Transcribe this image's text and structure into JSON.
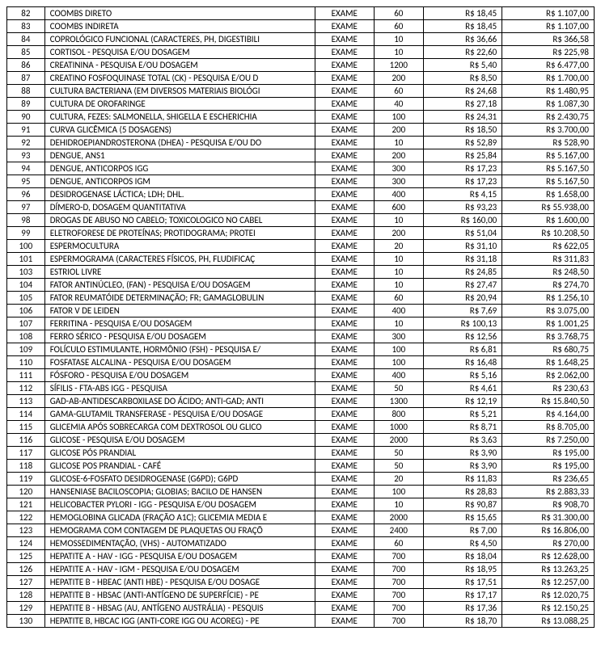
{
  "table": {
    "columns": [
      {
        "key": "id",
        "class": "col-id"
      },
      {
        "key": "desc",
        "class": "col-desc"
      },
      {
        "key": "type",
        "class": "col-type"
      },
      {
        "key": "qty",
        "class": "col-qty"
      },
      {
        "key": "unit",
        "class": "col-unit"
      },
      {
        "key": "total",
        "class": "col-total"
      }
    ],
    "rows": [
      {
        "id": "82",
        "desc": "COOMBS DIRETO",
        "type": "EXAME",
        "qty": "60",
        "unit": "R$ 18,45",
        "total": "R$ 1.107,00"
      },
      {
        "id": "83",
        "desc": "COOMBS INDIRETA",
        "type": "EXAME",
        "qty": "60",
        "unit": "R$ 18,45",
        "total": "R$ 1.107,00"
      },
      {
        "id": "84",
        "desc": "COPROLÓGICO FUNCIONAL (CARACTERES, PH, DIGESTIBILI",
        "type": "EXAME",
        "qty": "10",
        "unit": "R$ 36,66",
        "total": "R$ 366,58"
      },
      {
        "id": "85",
        "desc": "CORTISOL - PESQUISA E/OU DOSAGEM",
        "type": "EXAME",
        "qty": "10",
        "unit": "R$ 22,60",
        "total": "R$ 225,98"
      },
      {
        "id": "86",
        "desc": "CREATININA - PESQUISA E/OU DOSAGEM",
        "type": "EXAME",
        "qty": "1200",
        "unit": "R$ 5,40",
        "total": "R$ 6.477,00"
      },
      {
        "id": "87",
        "desc": "CREATINO FOSFOQUINASE TOTAL (CK) - PESQUISA E/OU D",
        "type": "EXAME",
        "qty": "200",
        "unit": "R$ 8,50",
        "total": "R$ 1.700,00"
      },
      {
        "id": "88",
        "desc": "CULTURA BACTERIANA (EM DIVERSOS MATERIAIS BIOLÓGI",
        "type": "EXAME",
        "qty": "60",
        "unit": "R$ 24,68",
        "total": "R$ 1.480,95"
      },
      {
        "id": "89",
        "desc": "CULTURA DE OROFARINGE",
        "type": "EXAME",
        "qty": "40",
        "unit": "R$ 27,18",
        "total": "R$ 1.087,30"
      },
      {
        "id": "90",
        "desc": "CULTURA, FEZES: SALMONELLA, SHIGELLA E ESCHERICHIA",
        "type": "EXAME",
        "qty": "100",
        "unit": "R$ 24,31",
        "total": "R$ 2.430,75"
      },
      {
        "id": "91",
        "desc": "CURVA GLICÊMICA (5 DOSAGENS)",
        "type": "EXAME",
        "qty": "200",
        "unit": "R$ 18,50",
        "total": "R$ 3.700,00"
      },
      {
        "id": "92",
        "desc": "DEHIDROEPIANDROSTERONA (DHEA) - PESQUISA E/OU DO",
        "type": "EXAME",
        "qty": "10",
        "unit": "R$ 52,89",
        "total": "R$ 528,90"
      },
      {
        "id": "93",
        "desc": "DENGUE, ANS1",
        "type": "EXAME",
        "qty": "200",
        "unit": "R$ 25,84",
        "total": "R$ 5.167,00"
      },
      {
        "id": "94",
        "desc": "DENGUE, ANTICORPOS IGG",
        "type": "EXAME",
        "qty": "300",
        "unit": "R$ 17,23",
        "total": "R$ 5.167,50"
      },
      {
        "id": "95",
        "desc": "DENGUE, ANTICORPOS IGM",
        "type": "EXAME",
        "qty": "300",
        "unit": "R$ 17,23",
        "total": "R$ 5.167,50"
      },
      {
        "id": "96",
        "desc": "DESIDROGENASE LÁCTICA; LDH; DHL.",
        "type": "EXAME",
        "qty": "400",
        "unit": "R$ 4,15",
        "total": "R$ 1.658,00"
      },
      {
        "id": "97",
        "desc": "DÍMERO-D, DOSAGEM QUANTITATIVA",
        "type": "EXAME",
        "qty": "600",
        "unit": "R$ 93,23",
        "total": "R$ 55.938,00"
      },
      {
        "id": "98",
        "desc": "DROGAS DE ABUSO NO CABELO; TOXICOLOGICO NO CABEL",
        "type": "EXAME",
        "qty": "10",
        "unit": "R$ 160,00",
        "total": "R$ 1.600,00"
      },
      {
        "id": "99",
        "desc": "ELETROFORESE DE PROTEÍNAS; PROTIDOGRAMA; PROTEI",
        "type": "EXAME",
        "qty": "200",
        "unit": "R$ 51,04",
        "total": "R$ 10.208,50"
      },
      {
        "id": "100",
        "desc": "ESPERMOCULTURA",
        "type": "EXAME",
        "qty": "20",
        "unit": "R$ 31,10",
        "total": "R$ 622,05"
      },
      {
        "id": "101",
        "desc": "ESPERMOGRAMA (CARACTERES FÍSICOS, PH, FLUDIFICAÇ",
        "type": "EXAME",
        "qty": "10",
        "unit": "R$ 31,18",
        "total": "R$ 311,83"
      },
      {
        "id": "103",
        "desc": "ESTRIOL LIVRE",
        "type": "EXAME",
        "qty": "10",
        "unit": "R$ 24,85",
        "total": "R$ 248,50"
      },
      {
        "id": "104",
        "desc": "FATOR ANTINÚCLEO, (FAN) - PESQUISA E/OU DOSAGEM",
        "type": "EXAME",
        "qty": "10",
        "unit": "R$ 27,47",
        "total": "R$ 274,70"
      },
      {
        "id": "105",
        "desc": "FATOR REUMATÓIDE DETERMINAÇÃO; FR; GAMAGLOBULIN",
        "type": "EXAME",
        "qty": "60",
        "unit": "R$ 20,94",
        "total": "R$ 1.256,10"
      },
      {
        "id": "106",
        "desc": "FATOR V DE LEIDEN",
        "type": "EXAME",
        "qty": "400",
        "unit": "R$ 7,69",
        "total": "R$ 3.075,00"
      },
      {
        "id": "107",
        "desc": "FERRITINA - PESQUISA E/OU DOSAGEM",
        "type": "EXAME",
        "qty": "10",
        "unit": "R$ 100,13",
        "total": "R$ 1.001,25"
      },
      {
        "id": "108",
        "desc": "FERRO SÉRICO - PESQUISA E/OU DOSAGEM",
        "type": "EXAME",
        "qty": "300",
        "unit": "R$ 12,56",
        "total": "R$ 3.768,75"
      },
      {
        "id": "109",
        "desc": "FOLÍCULO ESTIMULANTE, HORMÔNIO (FSH) - PESQUISA E/",
        "type": "EXAME",
        "qty": "100",
        "unit": "R$ 6,81",
        "total": "R$ 680,75"
      },
      {
        "id": "110",
        "desc": "FOSFATASE ALCALINA - PESQUISA E/OU DOSAGEM",
        "type": "EXAME",
        "qty": "100",
        "unit": "R$ 16,48",
        "total": "R$ 1.648,25"
      },
      {
        "id": "111",
        "desc": "FÓSFORO - PESQUISA E/OU DOSAGEM",
        "type": "EXAME",
        "qty": "400",
        "unit": "R$ 5,16",
        "total": "R$ 2.062,00"
      },
      {
        "id": "112",
        "desc": "SÍFILIS - FTA-ABS IGG - PESQUISA",
        "type": "EXAME",
        "qty": "50",
        "unit": "R$ 4,61",
        "total": "R$ 230,63"
      },
      {
        "id": "113",
        "desc": "GAD-AB-ANTIDESCARBOXILASE DO ÁCIDO; ANTI-GAD; ANTI",
        "type": "EXAME",
        "qty": "1300",
        "unit": "R$ 12,19",
        "total": "R$ 15.840,50"
      },
      {
        "id": "114",
        "desc": "GAMA-GLUTAMIL TRANSFERASE - PESQUISA E/OU DOSAGE",
        "type": "EXAME",
        "qty": "800",
        "unit": "R$ 5,21",
        "total": "R$ 4.164,00"
      },
      {
        "id": "115",
        "desc": "GLICEMIA APÓS SOBRECARGA COM DEXTROSOL OU GLICO",
        "type": "EXAME",
        "qty": "1000",
        "unit": "R$ 8,71",
        "total": "R$ 8.705,00"
      },
      {
        "id": "116",
        "desc": "GLICOSE - PESQUISA E/OU DOSAGEM",
        "type": "EXAME",
        "qty": "2000",
        "unit": "R$ 3,63",
        "total": "R$ 7.250,00"
      },
      {
        "id": "117",
        "desc": "GLICOSE PÓS PRANDIAL",
        "type": "EXAME",
        "qty": "50",
        "unit": "R$ 3,90",
        "total": "R$ 195,00"
      },
      {
        "id": "118",
        "desc": "GLICOSE POS PRANDIAL - CAFÉ",
        "type": "EXAME",
        "qty": "50",
        "unit": "R$ 3,90",
        "total": "R$ 195,00"
      },
      {
        "id": "119",
        "desc": "GLICOSE-6-FOSFATO DESIDROGENASE (G6PD); G6PD",
        "type": "EXAME",
        "qty": "20",
        "unit": "R$ 11,83",
        "total": "R$ 236,65"
      },
      {
        "id": "120",
        "desc": "HANSENIASE BACILOSCOPIA; GLOBIAS; BACILO DE HANSEN",
        "type": "EXAME",
        "qty": "100",
        "unit": "R$ 28,83",
        "total": "R$ 2.883,33"
      },
      {
        "id": "121",
        "desc": "HELICOBACTER PYLORI - IGG - PESQUISA E/OU DOSAGEM",
        "type": "EXAME",
        "qty": "10",
        "unit": "R$ 90,87",
        "total": "R$ 908,70"
      },
      {
        "id": "122",
        "desc": "HEMOGLOBINA GLICADA (FRAÇÃO A1C); GLICEMIA MEDIA E",
        "type": "EXAME",
        "qty": "2000",
        "unit": "R$ 15,65",
        "total": "R$ 31.300,00"
      },
      {
        "id": "123",
        "desc": "HEMOGRAMA COM CONTAGEM DE PLAQUETAS OU FRAÇÕ",
        "type": "EXAME",
        "qty": "2400",
        "unit": "R$ 7,00",
        "total": "R$ 16.806,00"
      },
      {
        "id": "124",
        "desc": "HEMOSSEDIMENTAÇÃO, (VHS) - AUTOMATIZADO",
        "type": "EXAME",
        "qty": "60",
        "unit": "R$ 4,50",
        "total": "R$ 270,00"
      },
      {
        "id": "125",
        "desc": "HEPATITE A - HAV - IGG - PESQUISA E/OU DOSAGEM",
        "type": "EXAME",
        "qty": "700",
        "unit": "R$ 18,04",
        "total": "R$ 12.628,00"
      },
      {
        "id": "126",
        "desc": "HEPATITE A - HAV - IGM - PESQUISA E/OU DOSAGEM",
        "type": "EXAME",
        "qty": "700",
        "unit": "R$ 18,95",
        "total": "R$ 13.263,25"
      },
      {
        "id": "127",
        "desc": "HEPATITE B - HBEAC (ANTI HBE) - PESQUISA E/OU DOSAGE",
        "type": "EXAME",
        "qty": "700",
        "unit": "R$ 17,51",
        "total": "R$ 12.257,00"
      },
      {
        "id": "128",
        "desc": "HEPATITE B - HBSAC (ANTI-ANTÍGENO DE SUPERFÍCIE) - PE",
        "type": "EXAME",
        "qty": "700",
        "unit": "R$ 17,17",
        "total": "R$ 12.020,75"
      },
      {
        "id": "129",
        "desc": "HEPATITE B - HBSAG (AU, ANTÍGENO AUSTRÁLIA) - PESQUIS",
        "type": "EXAME",
        "qty": "700",
        "unit": "R$ 17,36",
        "total": "R$ 12.150,25"
      },
      {
        "id": "130",
        "desc": "HEPATITE B, HBCAC IGG (ANTI-CORE IGG OU ACOREG) - PE",
        "type": "EXAME",
        "qty": "700",
        "unit": "R$ 18,70",
        "total": "R$ 13.088,25"
      }
    ]
  }
}
